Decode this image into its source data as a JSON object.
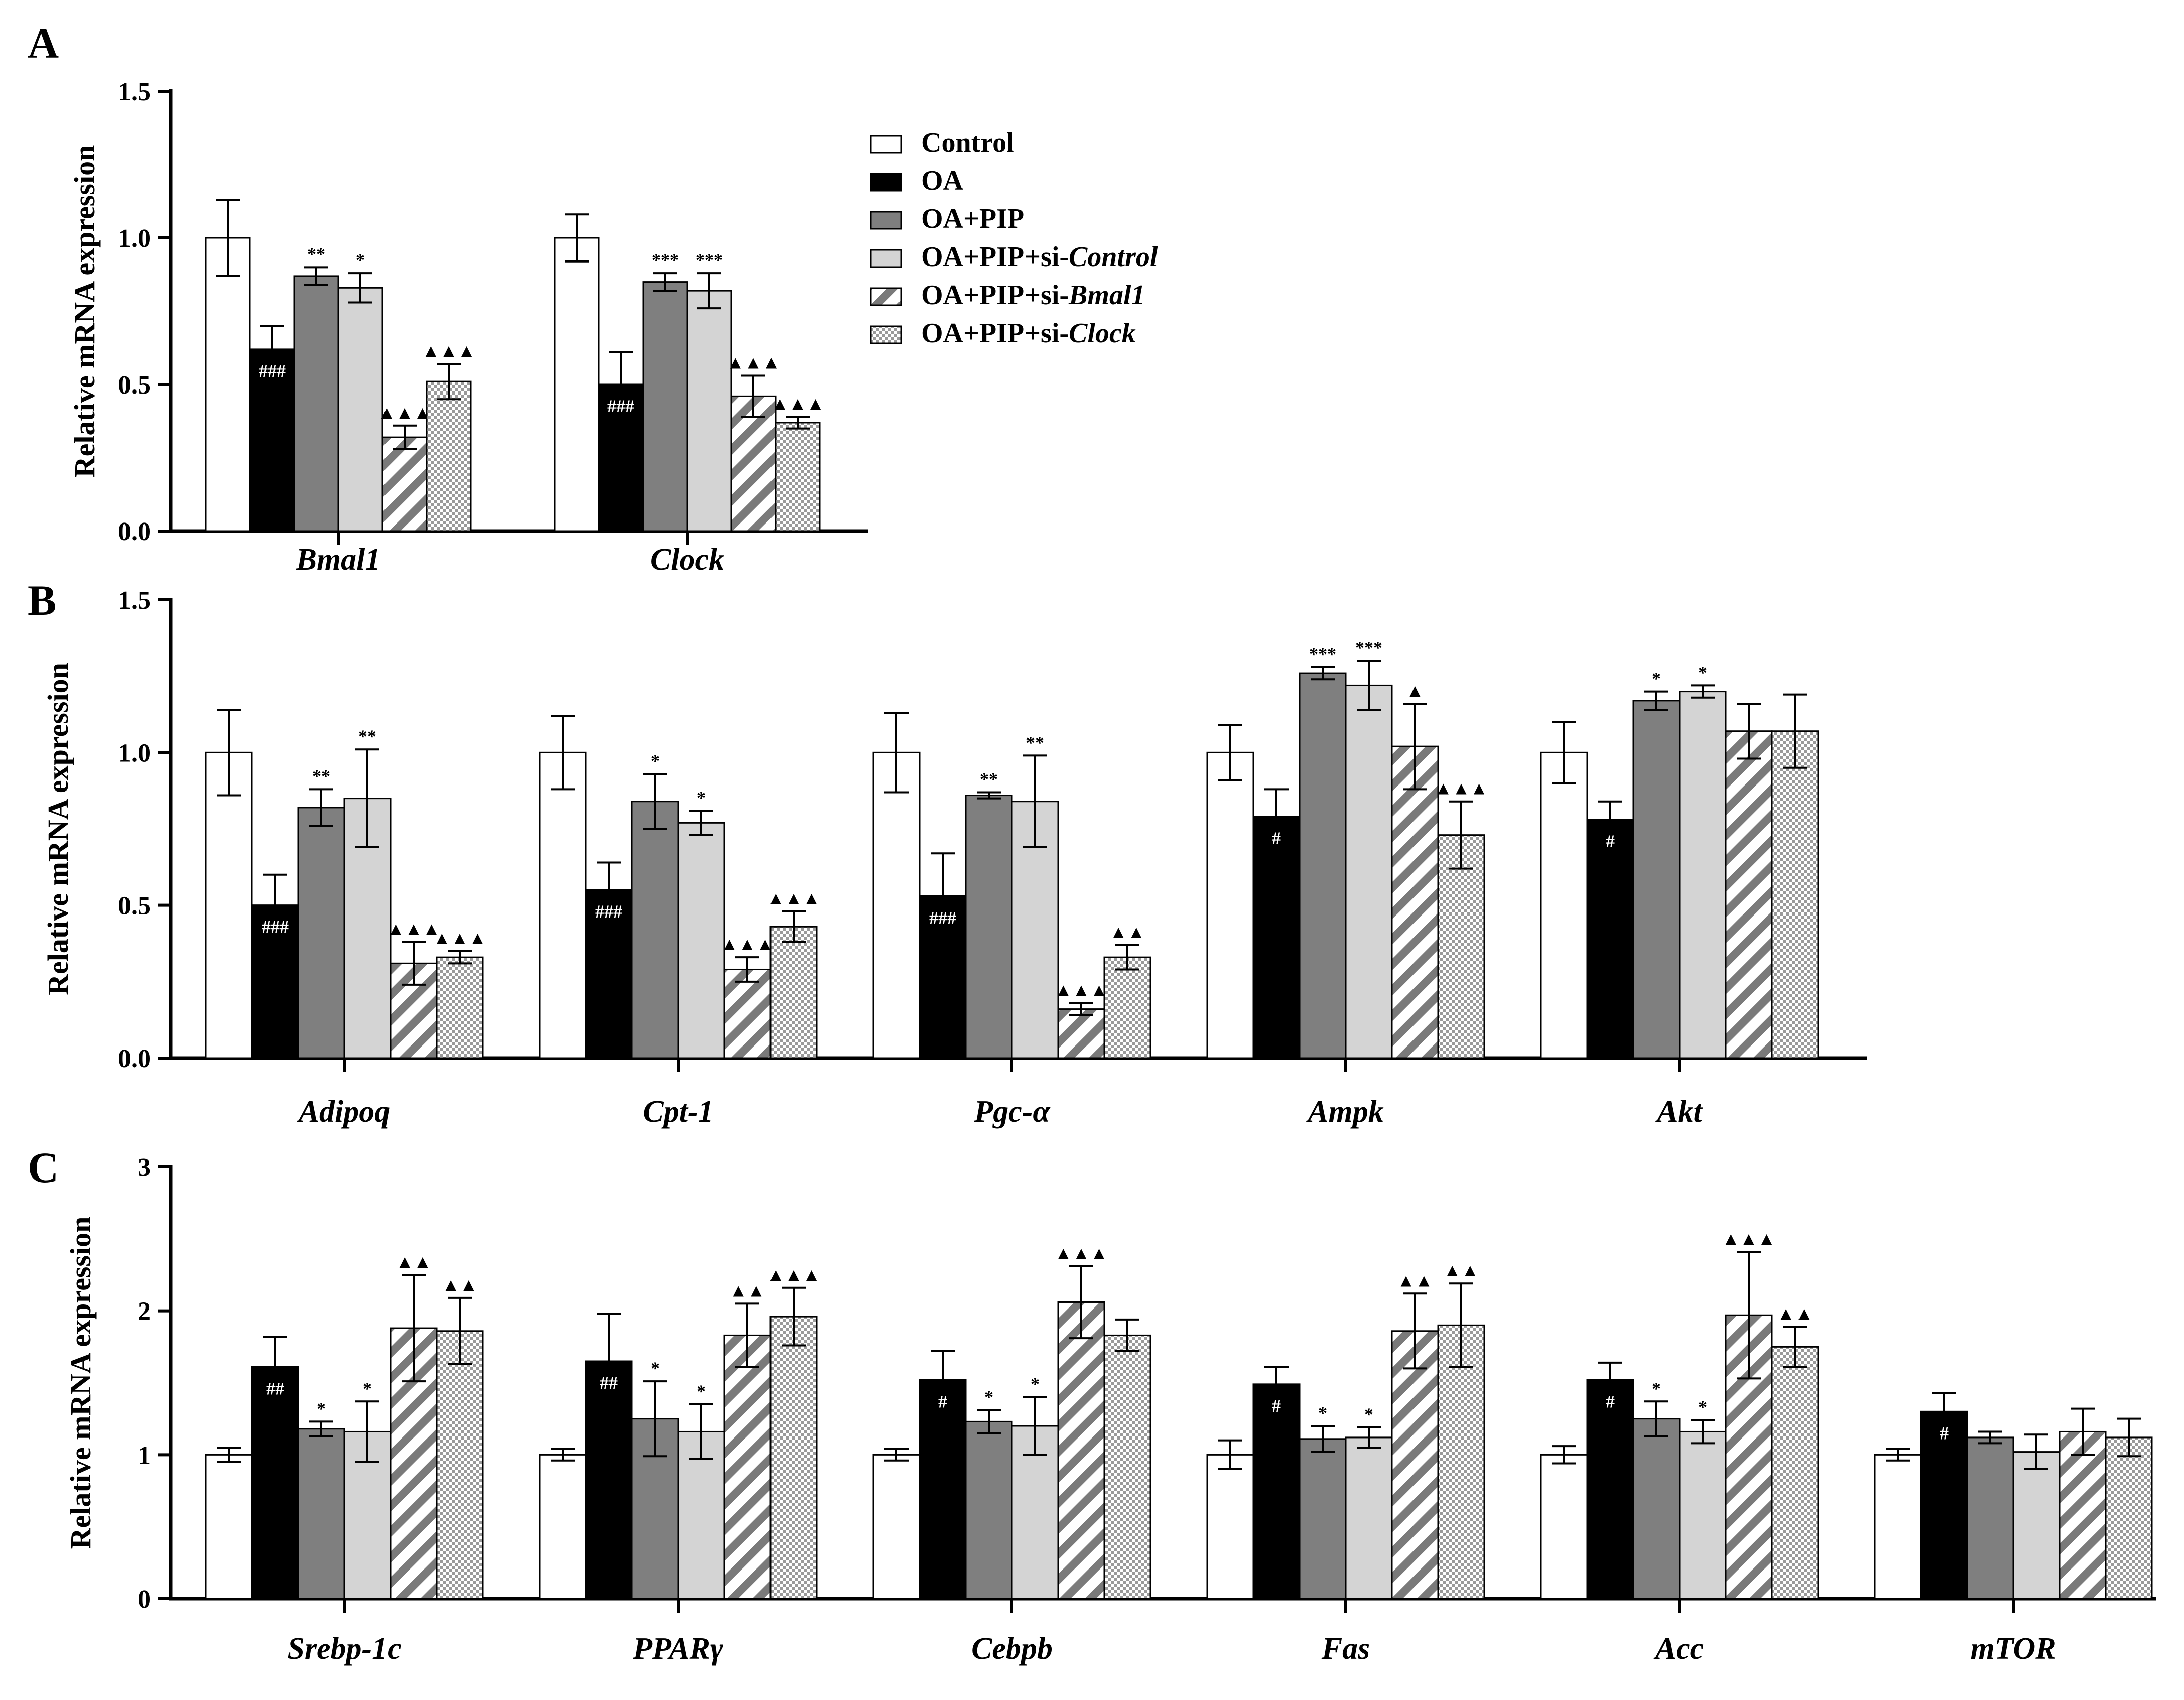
{
  "groups": [
    {
      "name": "Control",
      "fill": "#ffffff",
      "pattern": "none"
    },
    {
      "name": "OA",
      "fill": "#000000",
      "pattern": "none"
    },
    {
      "name": "OA+PIP",
      "fill": "#7f7f7f",
      "pattern": "none"
    },
    {
      "name": "OA+PIP+si-Control",
      "prefix": "OA+PIP+si-",
      "suffix": "Control",
      "fill": "#d4d4d4",
      "pattern": "none"
    },
    {
      "name": "OA+PIP+si-Bmal1",
      "prefix": "OA+PIP+si-",
      "suffix": "Bmal1",
      "fill": "#ffffff",
      "pattern": "diagonal"
    },
    {
      "name": "OA+PIP+si-Clock",
      "prefix": "OA+PIP+si-",
      "suffix": "Clock",
      "fill": "#ffffff",
      "pattern": "checker"
    }
  ],
  "chart_data": [
    {
      "panel": "A",
      "type": "bar",
      "ylabel": "Relative mRNA expression",
      "ylim": [
        0,
        1.5
      ],
      "yticks": [
        "0.0",
        "0.5",
        "1.0",
        "1.5"
      ],
      "legend_position": "right",
      "categories": [
        "Bmal1",
        "Clock"
      ],
      "series": [
        {
          "name": "Control",
          "values": [
            1.0,
            1.0
          ],
          "errors": [
            0.13,
            0.08
          ],
          "marks": [
            "",
            ""
          ]
        },
        {
          "name": "OA",
          "values": [
            0.62,
            0.5
          ],
          "errors": [
            0.08,
            0.11
          ],
          "marks": [
            "###",
            "###"
          ]
        },
        {
          "name": "OA+PIP",
          "values": [
            0.87,
            0.85
          ],
          "errors": [
            0.03,
            0.03
          ],
          "marks": [
            "**",
            "***"
          ]
        },
        {
          "name": "OA+PIP+si-Control",
          "values": [
            0.83,
            0.82
          ],
          "errors": [
            0.05,
            0.06
          ],
          "marks": [
            "*",
            "***"
          ]
        },
        {
          "name": "OA+PIP+si-Bmal1",
          "values": [
            0.32,
            0.46
          ],
          "errors": [
            0.04,
            0.07
          ],
          "marks": [
            "▲▲▲",
            "▲▲▲"
          ]
        },
        {
          "name": "OA+PIP+si-Clock",
          "values": [
            0.51,
            0.37
          ],
          "errors": [
            0.06,
            0.02
          ],
          "marks": [
            "▲▲▲",
            "▲▲▲"
          ]
        }
      ]
    },
    {
      "panel": "B",
      "type": "bar",
      "ylabel": "Relative mRNA expression",
      "ylim": [
        0,
        1.5
      ],
      "yticks": [
        "0.0",
        "0.5",
        "1.0",
        "1.5"
      ],
      "categories": [
        "Adipoq",
        "Cpt-1",
        "Pgc-α",
        "Ampk",
        "Akt"
      ],
      "series": [
        {
          "name": "Control",
          "values": [
            1.0,
            1.0,
            1.0,
            1.0,
            1.0
          ],
          "errors": [
            0.14,
            0.12,
            0.13,
            0.09,
            0.1
          ],
          "marks": [
            "",
            "",
            "",
            "",
            ""
          ]
        },
        {
          "name": "OA",
          "values": [
            0.5,
            0.55,
            0.53,
            0.79,
            0.78
          ],
          "errors": [
            0.1,
            0.09,
            0.14,
            0.09,
            0.06
          ],
          "marks": [
            "###",
            "###",
            "###",
            "#",
            "#"
          ]
        },
        {
          "name": "OA+PIP",
          "values": [
            0.82,
            0.84,
            0.86,
            1.26,
            1.17
          ],
          "errors": [
            0.06,
            0.09,
            0.01,
            0.02,
            0.03
          ],
          "marks": [
            "**",
            "*",
            "**",
            "***",
            "*"
          ]
        },
        {
          "name": "OA+PIP+si-Control",
          "values": [
            0.85,
            0.77,
            0.84,
            1.22,
            1.2
          ],
          "errors": [
            0.16,
            0.04,
            0.15,
            0.08,
            0.02
          ],
          "marks": [
            "**",
            "*",
            "**",
            "***",
            "*"
          ]
        },
        {
          "name": "OA+PIP+si-Bmal1",
          "values": [
            0.31,
            0.29,
            0.16,
            1.02,
            1.07
          ],
          "errors": [
            0.07,
            0.04,
            0.02,
            0.14,
            0.09
          ],
          "marks": [
            "▲▲▲",
            "▲▲▲",
            "▲▲▲",
            "▲",
            ""
          ]
        },
        {
          "name": "OA+PIP+si-Clock",
          "values": [
            0.33,
            0.43,
            0.33,
            0.73,
            1.07
          ],
          "errors": [
            0.02,
            0.05,
            0.04,
            0.11,
            0.12
          ],
          "marks": [
            "▲▲▲",
            "▲▲▲",
            "▲▲",
            "▲▲▲",
            ""
          ]
        }
      ]
    },
    {
      "panel": "C",
      "type": "bar",
      "ylabel": "Relative mRNA expression",
      "ylim": [
        0,
        3
      ],
      "yticks": [
        "0",
        "1",
        "2",
        "3"
      ],
      "categories": [
        "Srebp-1c",
        "PPARγ",
        "Cebpb",
        "Fas",
        "Acc",
        "mTOR"
      ],
      "series": [
        {
          "name": "Control",
          "values": [
            1.0,
            1.0,
            1.0,
            1.0,
            1.0,
            1.0
          ],
          "errors": [
            0.05,
            0.04,
            0.04,
            0.1,
            0.06,
            0.04
          ],
          "marks": [
            "",
            "",
            "",
            "",
            "",
            ""
          ]
        },
        {
          "name": "OA",
          "values": [
            1.61,
            1.65,
            1.52,
            1.49,
            1.52,
            1.3
          ],
          "errors": [
            0.21,
            0.33,
            0.2,
            0.12,
            0.12,
            0.13
          ],
          "marks": [
            "##",
            "##",
            "#",
            "#",
            "#",
            "#"
          ]
        },
        {
          "name": "OA+PIP",
          "values": [
            1.18,
            1.25,
            1.23,
            1.11,
            1.25,
            1.12
          ],
          "errors": [
            0.05,
            0.26,
            0.08,
            0.09,
            0.12,
            0.04
          ],
          "marks": [
            "*",
            "*",
            "*",
            "*",
            "*",
            ""
          ]
        },
        {
          "name": "OA+PIP+si-Control",
          "values": [
            1.16,
            1.16,
            1.2,
            1.12,
            1.16,
            1.02
          ],
          "errors": [
            0.21,
            0.19,
            0.2,
            0.07,
            0.08,
            0.12
          ],
          "marks": [
            "*",
            "*",
            "*",
            "*",
            "*",
            ""
          ]
        },
        {
          "name": "OA+PIP+si-Bmal1",
          "values": [
            1.88,
            1.83,
            2.06,
            1.86,
            1.97,
            1.16
          ],
          "errors": [
            0.37,
            0.22,
            0.25,
            0.26,
            0.44,
            0.16
          ],
          "marks": [
            "▲▲",
            "▲▲",
            "▲▲▲",
            "▲▲",
            "▲▲▲",
            ""
          ]
        },
        {
          "name": "OA+PIP+si-Clock",
          "values": [
            1.86,
            1.96,
            1.83,
            1.9,
            1.75,
            1.12
          ],
          "errors": [
            0.23,
            0.2,
            0.11,
            0.29,
            0.14,
            0.13
          ],
          "marks": [
            "▲▲",
            "▲▲▲",
            "",
            "▲▲",
            "▲▲",
            ""
          ]
        }
      ]
    }
  ]
}
